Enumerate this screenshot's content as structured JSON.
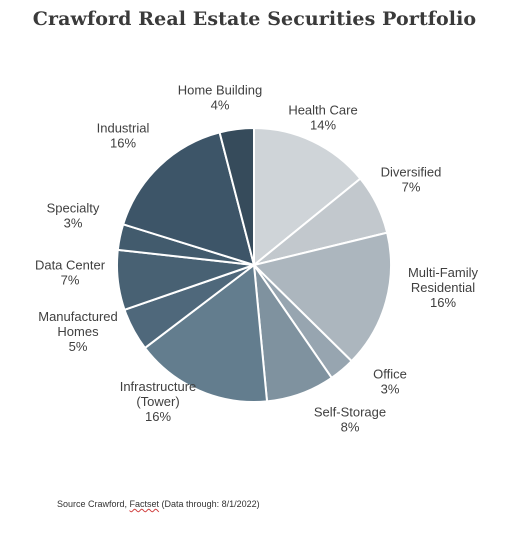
{
  "chart_data": {
    "type": "pie",
    "title": "Crawford Real Estate Securities Portfolio",
    "unit": "%",
    "slices": [
      {
        "label": [
          "Health Care"
        ],
        "value": 14,
        "display": "14%",
        "color": "#cfd4d8"
      },
      {
        "label": [
          "Diversified"
        ],
        "value": 7,
        "display": "7%",
        "color": "#c2c8cd"
      },
      {
        "label": [
          "Multi-Family",
          "Residential"
        ],
        "value": 16,
        "display": "16%",
        "color": "#acb6be"
      },
      {
        "label": [
          "Office"
        ],
        "value": 3,
        "display": "3%",
        "color": "#97a5b0"
      },
      {
        "label": [
          "Self-Storage"
        ],
        "value": 8,
        "display": "8%",
        "color": "#7f929f"
      },
      {
        "label": [
          "Infrastructure",
          "(Tower)"
        ],
        "value": 16,
        "display": "16%",
        "color": "#637d8e"
      },
      {
        "label": [
          "Manufactured",
          "Homes"
        ],
        "value": 5,
        "display": "5%",
        "color": "#4f687b"
      },
      {
        "label": [
          "Data Center"
        ],
        "value": 7,
        "display": "7%",
        "color": "#486173"
      },
      {
        "label": [
          "Specialty"
        ],
        "value": 3,
        "display": "3%",
        "color": "#425b6d"
      },
      {
        "label": [
          "Industrial"
        ],
        "value": 16,
        "display": "16%",
        "color": "#3d5568"
      },
      {
        "label": [
          "Home Building"
        ],
        "value": 4,
        "display": "4%",
        "color": "#364b5b"
      }
    ]
  },
  "source": {
    "prefix": "Source Crawford, ",
    "flagged": "Factset",
    "suffix": " (Data through: 8/1/2022)"
  }
}
